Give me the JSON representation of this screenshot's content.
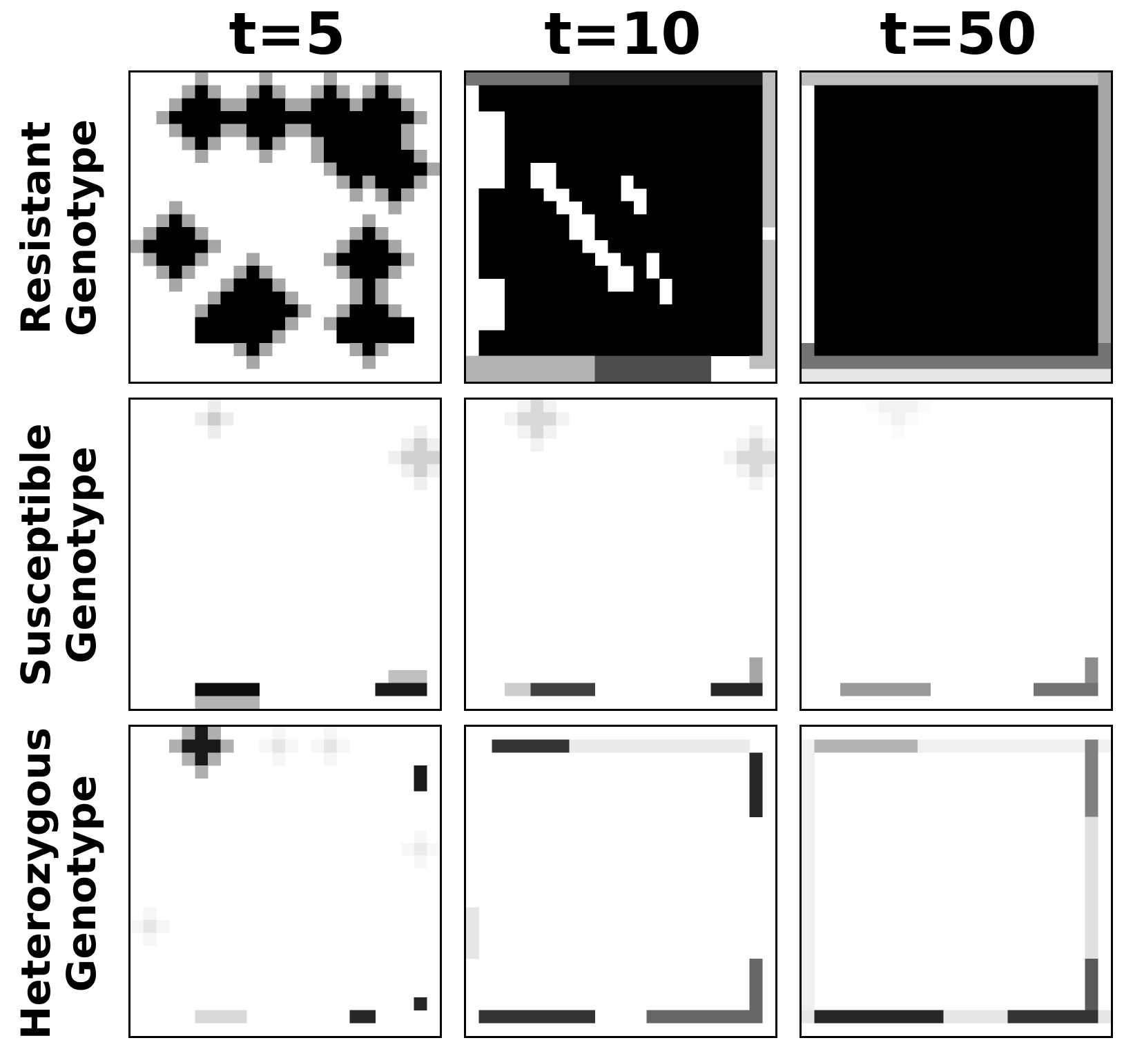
{
  "columns": [
    "t=5",
    "t=10",
    "t=50"
  ],
  "rows": [
    {
      "label_line1": "Resistant",
      "label_line2": "Genotype"
    },
    {
      "label_line1": "Susceptible",
      "label_line2": "Genotype"
    },
    {
      "label_line1": "Heterozygous",
      "label_line2": "Genotype"
    }
  ],
  "colormap": {
    "low": "#ffffff",
    "high": "#000000"
  },
  "grid_cells": 24,
  "panels": {
    "res_t5": {
      "disks": [
        [
          5,
          3,
          2.7
        ],
        [
          10,
          3,
          2.7
        ],
        [
          15,
          3,
          2.7
        ],
        [
          19,
          3,
          2.5
        ],
        [
          17,
          6,
          2.7
        ],
        [
          20,
          7,
          2.3
        ],
        [
          3,
          13,
          2.7
        ],
        [
          18,
          14,
          2.3
        ],
        [
          9,
          18,
          3.0
        ],
        [
          18,
          19,
          2.2
        ]
      ],
      "rects": [
        [
          5,
          19,
          11,
          21,
          1.0
        ],
        [
          16,
          19,
          22,
          21,
          1.0
        ]
      ]
    },
    "res_t10": {
      "rects": [
        [
          1,
          1,
          23,
          22,
          1.0
        ],
        [
          0,
          0,
          8,
          1,
          0.55
        ],
        [
          8,
          0,
          23,
          1,
          0.9
        ],
        [
          22,
          0,
          24,
          23,
          0.25
        ],
        [
          0,
          22,
          10,
          24,
          0.3
        ],
        [
          10,
          22,
          19,
          24,
          0.7
        ]
      ],
      "clears": [
        [
          0,
          3,
          3,
          9
        ],
        [
          0,
          16,
          3,
          20
        ],
        [
          23,
          12,
          24,
          13
        ]
      ],
      "lines": [
        [
          6,
          8,
          12,
          16,
          1.2
        ],
        [
          12,
          8,
          14,
          11,
          1.0
        ],
        [
          14,
          14,
          16,
          18,
          0.5
        ]
      ]
    },
    "res_t50": {
      "rects": [
        [
          1,
          1,
          23,
          22,
          1.0
        ],
        [
          0,
          0,
          24,
          1,
          0.25
        ],
        [
          23,
          0,
          24,
          23,
          0.35
        ],
        [
          0,
          21,
          24,
          23,
          0.55
        ],
        [
          0,
          23,
          24,
          24,
          0.1
        ]
      ]
    },
    "sus_t5": {
      "rects": [
        [
          5,
          22,
          10,
          23,
          0.95
        ],
        [
          19,
          22,
          23,
          23,
          0.9
        ],
        [
          5,
          23,
          10,
          24,
          0.3
        ],
        [
          20,
          21,
          23,
          22,
          0.25
        ]
      ],
      "disks": [
        [
          6,
          1,
          0.8,
          0.2
        ],
        [
          22,
          4,
          1.2,
          0.18
        ]
      ]
    },
    "sus_t10": {
      "rects": [
        [
          5,
          22,
          10,
          23,
          0.75
        ],
        [
          19,
          22,
          23,
          23,
          0.85
        ],
        [
          22,
          20,
          23,
          22,
          0.35
        ],
        [
          3,
          22,
          5,
          23,
          0.2
        ]
      ],
      "disks": [
        [
          5,
          1,
          1.3,
          0.15
        ],
        [
          22,
          4,
          1.5,
          0.15
        ]
      ]
    },
    "sus_t50": {
      "rects": [
        [
          3,
          22,
          10,
          23,
          0.4
        ],
        [
          18,
          22,
          23,
          23,
          0.55
        ],
        [
          22,
          20,
          23,
          22,
          0.45
        ]
      ],
      "disks": [
        [
          7,
          0,
          1.5,
          0.05
        ]
      ]
    },
    "het_t5": {
      "rects": [
        [
          22,
          3,
          23,
          5,
          0.9
        ],
        [
          22,
          21,
          23,
          22,
          0.85
        ],
        [
          17,
          22,
          19,
          23,
          0.85
        ],
        [
          5,
          22,
          9,
          23,
          0.15
        ]
      ],
      "disks": [
        [
          5,
          1,
          1.0,
          0.9
        ],
        [
          11,
          1,
          0.6,
          0.1
        ],
        [
          15,
          1,
          0.6,
          0.1
        ],
        [
          22,
          9,
          0.7,
          0.08
        ],
        [
          1,
          15,
          0.7,
          0.1
        ]
      ]
    },
    "het_t10": {
      "rects": [
        [
          2,
          1,
          8,
          2,
          0.8
        ],
        [
          22,
          2,
          23,
          7,
          0.85
        ],
        [
          1,
          22,
          10,
          23,
          0.8
        ],
        [
          14,
          22,
          23,
          23,
          0.6
        ],
        [
          22,
          18,
          23,
          22,
          0.6
        ],
        [
          8,
          1,
          22,
          2,
          0.08
        ],
        [
          0,
          14,
          1,
          18,
          0.1
        ]
      ]
    },
    "het_t50": {
      "rects": [
        [
          1,
          1,
          9,
          2,
          0.3
        ],
        [
          22,
          1,
          23,
          7,
          0.5
        ],
        [
          1,
          22,
          11,
          23,
          0.85
        ],
        [
          16,
          22,
          23,
          23,
          0.8
        ],
        [
          22,
          18,
          23,
          22,
          0.65
        ],
        [
          0,
          1,
          24,
          2,
          0.06
        ],
        [
          0,
          22,
          24,
          23,
          0.1
        ],
        [
          22,
          7,
          23,
          18,
          0.12
        ],
        [
          0,
          2,
          1,
          22,
          0.06
        ]
      ]
    }
  }
}
